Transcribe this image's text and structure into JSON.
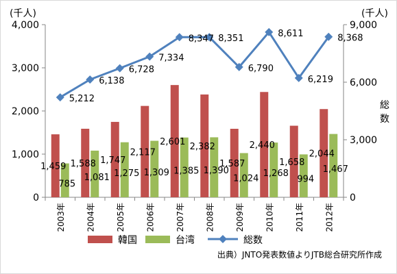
{
  "chart_data": {
    "type": "bar",
    "categories": [
      "2003年",
      "2004年",
      "2005年",
      "2006年",
      "2007年",
      "2008年",
      "2009年",
      "2010年",
      "2011年",
      "2012年"
    ],
    "series": [
      {
        "name": "韓国",
        "axis": "left",
        "kind": "bar",
        "color": "#c0504d",
        "values": [
          1459,
          1588,
          1747,
          2117,
          2601,
          2382,
          1587,
          2440,
          1658,
          2044
        ]
      },
      {
        "name": "台湾",
        "axis": "left",
        "kind": "bar",
        "color": "#9bbb59",
        "values": [
          785,
          1081,
          1275,
          1309,
          1385,
          1390,
          1024,
          1268,
          994,
          1467
        ]
      },
      {
        "name": "総数",
        "axis": "right",
        "kind": "line",
        "color": "#4f81bd",
        "values": [
          5212,
          6138,
          6728,
          7334,
          8347,
          8351,
          6790,
          8611,
          6219,
          8368
        ]
      }
    ],
    "y_left": {
      "unit": "(千人)",
      "ticks": [
        "0",
        "1,000",
        "2,000",
        "3,000",
        "4,000"
      ],
      "ylim": [
        0,
        4000
      ]
    },
    "y_right": {
      "unit": "(千人)",
      "label": "総数",
      "ticks": [
        "0",
        "3,000",
        "6,000",
        "9,000"
      ],
      "ylim": [
        0,
        9000
      ]
    },
    "grid": false,
    "legend_position": "bottom",
    "source_note": "出典）JNTO発表数値よりJTB総合研究所作成"
  }
}
